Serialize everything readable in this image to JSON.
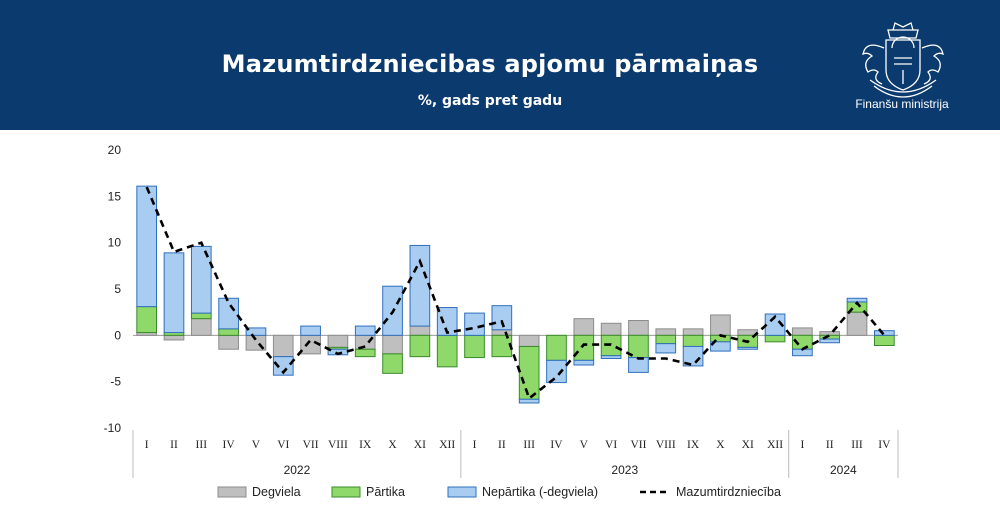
{
  "header": {
    "title": "Mazumtirdzniecibas apjomu pārmaiņas",
    "subtitle": "%, gads pret gadu",
    "organization": "Finanšu ministrija",
    "background_color": "#0b3a6e",
    "logo_icon": "coat-of-arms-icon"
  },
  "chart_data": {
    "type": "bar",
    "stacked": true,
    "ylim": [
      -10,
      20
    ],
    "yticks": [
      -10,
      -5,
      0,
      5,
      10,
      15,
      20
    ],
    "grid": false,
    "legend_position": "bottom",
    "categories": [
      "I",
      "II",
      "III",
      "IV",
      "V",
      "VI",
      "VII",
      "VIII",
      "IX",
      "X",
      "XI",
      "XII",
      "I",
      "II",
      "III",
      "IV",
      "V",
      "VI",
      "VII",
      "VIII",
      "IX",
      "X",
      "XI",
      "XII",
      "I",
      "II",
      "III",
      "IV"
    ],
    "years": [
      {
        "label": "2022",
        "count": 12
      },
      {
        "label": "2023",
        "count": 12
      },
      {
        "label": "2024",
        "count": 4
      }
    ],
    "series": [
      {
        "name": "Degviela",
        "kind": "bar",
        "color": "#bfbfbf",
        "values": [
          0.3,
          -0.5,
          1.8,
          -1.5,
          -1.6,
          -2.3,
          -2.0,
          -1.3,
          -1.5,
          -2.0,
          1.0,
          0.0,
          0.0,
          0.6,
          -1.2,
          0.0,
          1.8,
          1.3,
          1.6,
          0.7,
          0.7,
          2.2,
          0.6,
          0.0,
          0.8,
          0.4,
          2.5,
          0.0
        ]
      },
      {
        "name": "Pārtika",
        "kind": "bar",
        "color": "#8fd96b",
        "values": [
          2.8,
          0.3,
          0.6,
          0.7,
          0.0,
          0.0,
          0.0,
          -0.2,
          -0.8,
          -2.1,
          -2.3,
          -3.4,
          -2.4,
          -2.3,
          -5.7,
          -2.7,
          -2.7,
          -2.2,
          -2.4,
          -0.9,
          -1.2,
          -0.7,
          -1.3,
          -0.7,
          -1.5,
          -0.4,
          1.1,
          -1.1
        ]
      },
      {
        "name": "Nepārtika (-degviela)",
        "kind": "bar",
        "color": "#a9cdf0",
        "values": [
          13.0,
          8.6,
          7.2,
          3.3,
          0.8,
          -2.0,
          1.0,
          -0.6,
          1.0,
          5.3,
          8.7,
          3.0,
          2.4,
          2.6,
          -0.4,
          -2.4,
          -0.5,
          -0.3,
          -1.6,
          -1.0,
          -2.1,
          -1.0,
          -0.2,
          2.3,
          -0.7,
          -0.4,
          0.4,
          0.5
        ]
      },
      {
        "name": "Mazumtirdzniecība",
        "kind": "line",
        "color": "#000000",
        "values": [
          16.0,
          9.0,
          10.0,
          3.5,
          -0.5,
          -4.0,
          -0.5,
          -2.0,
          -1.2,
          2.5,
          8.0,
          0.3,
          0.8,
          1.5,
          -6.8,
          -4.5,
          -1.0,
          -1.0,
          -2.5,
          -2.5,
          -3.2,
          0.0,
          -0.7,
          2.0,
          -1.5,
          0.0,
          3.5,
          0.0
        ]
      }
    ]
  }
}
